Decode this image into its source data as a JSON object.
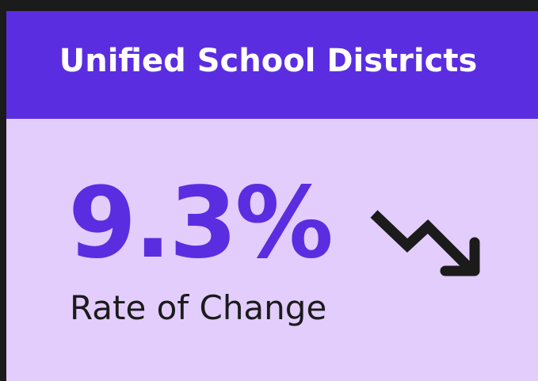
{
  "header": {
    "title": "Unified School Districts"
  },
  "kpi": {
    "value": "9.3%",
    "label": "Rate of Change"
  }
}
